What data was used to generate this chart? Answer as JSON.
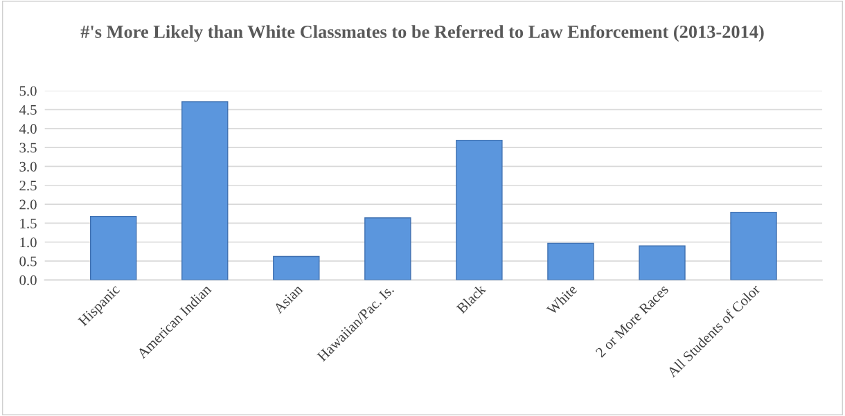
{
  "chart_data": {
    "type": "bar",
    "title": "#'s More Likely than White Classmates to be Referred to Law Enforcement (2013-2014)",
    "categories": [
      "Hispanic",
      "American Indian",
      "Asian",
      "Hawaiian/Pac. Is.",
      "Black",
      "White",
      "2 or More Races",
      "All Students of Color"
    ],
    "values": [
      1.68,
      4.71,
      0.62,
      1.64,
      3.69,
      0.97,
      0.9,
      1.79
    ],
    "color": "#5b96dd",
    "ylim": [
      0,
      5
    ],
    "yticks": [
      {
        "value": 0,
        "label": "0.0"
      },
      {
        "value": 0.5,
        "label": "0.5"
      },
      {
        "value": 1,
        "label": "1.0"
      },
      {
        "value": 1.5,
        "label": "1.5"
      },
      {
        "value": 2,
        "label": "2.0"
      },
      {
        "value": 2.5,
        "label": "2.5"
      },
      {
        "value": 3,
        "label": "3.0"
      },
      {
        "value": 3.5,
        "label": "3.5"
      },
      {
        "value": 4,
        "label": "4.0"
      },
      {
        "value": 4.5,
        "label": "4.5"
      },
      {
        "value": 5,
        "label": "5.0"
      }
    ],
    "grid": "y"
  }
}
